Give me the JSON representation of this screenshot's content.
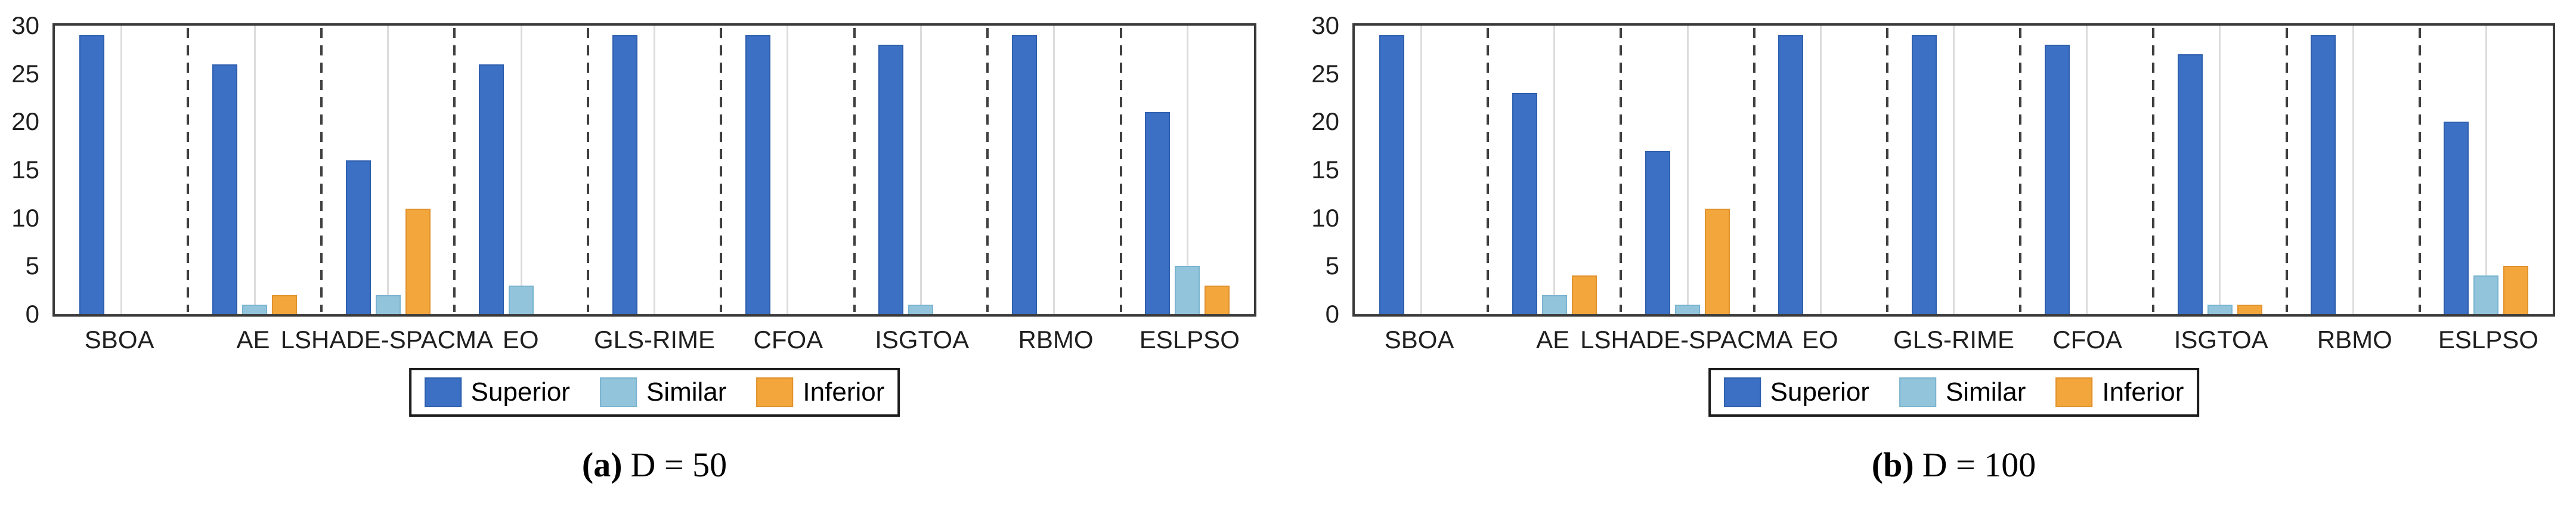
{
  "figure": {
    "background": "#ffffff"
  },
  "legend": {
    "items": [
      {
        "label": "Superior",
        "color": "#3b70c4",
        "edge": "#2e5fae"
      },
      {
        "label": "Similar",
        "color": "#92c5db",
        "edge": "#7ab4cf"
      },
      {
        "label": "Inferior",
        "color": "#f2a63c",
        "edge": "#e0922c"
      }
    ]
  },
  "chart_data": [
    {
      "type": "bar",
      "caption_label": "(a)",
      "caption_title": "D = 50",
      "title": "",
      "xlabel": "",
      "ylabel": "",
      "ylim": [
        0,
        30
      ],
      "yticks": [
        0,
        5,
        10,
        15,
        20,
        25,
        30
      ],
      "grid": "light vertical gridline at each group center; dashed vertical separators between groups",
      "legend_position": "below-center",
      "categories": [
        "SBOA",
        "AE",
        "LSHADE-SPACMA",
        "EO",
        "GLS-RIME",
        "CFOA",
        "ISGTOA",
        "RBMO",
        "ESLPSO"
      ],
      "series": [
        {
          "name": "Superior",
          "values": [
            29,
            26,
            16,
            26,
            29,
            29,
            28,
            29,
            21
          ]
        },
        {
          "name": "Similar",
          "values": [
            0,
            1,
            2,
            3,
            0,
            0,
            1,
            0,
            5
          ]
        },
        {
          "name": "Inferior",
          "values": [
            0,
            2,
            11,
            0,
            0,
            0,
            0,
            0,
            3
          ]
        }
      ]
    },
    {
      "type": "bar",
      "caption_label": "(b)",
      "caption_title": "D = 100",
      "title": "",
      "xlabel": "",
      "ylabel": "",
      "ylim": [
        0,
        30
      ],
      "yticks": [
        0,
        5,
        10,
        15,
        20,
        25,
        30
      ],
      "grid": "light vertical gridline at each group center; dashed vertical separators between groups",
      "legend_position": "below-center",
      "categories": [
        "SBOA",
        "AE",
        "LSHADE-SPACMA",
        "EO",
        "GLS-RIME",
        "CFOA",
        "ISGTOA",
        "RBMO",
        "ESLPSO"
      ],
      "series": [
        {
          "name": "Superior",
          "values": [
            29,
            23,
            17,
            29,
            29,
            28,
            27,
            29,
            20
          ]
        },
        {
          "name": "Similar",
          "values": [
            0,
            2,
            1,
            0,
            0,
            0,
            1,
            0,
            4
          ]
        },
        {
          "name": "Inferior",
          "values": [
            0,
            4,
            11,
            0,
            0,
            0,
            1,
            0,
            5
          ]
        }
      ]
    }
  ]
}
